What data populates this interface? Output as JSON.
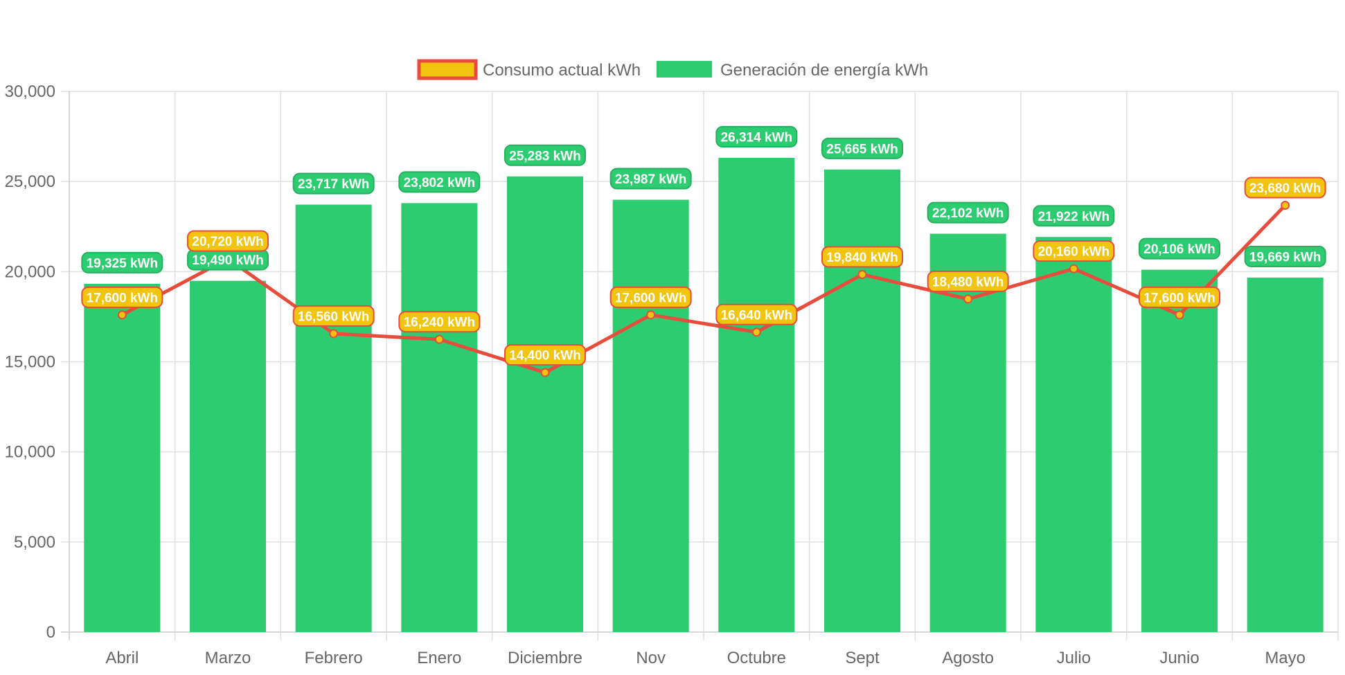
{
  "chart_data": {
    "type": "bar",
    "title": "",
    "xlabel": "",
    "ylabel": "",
    "categories": [
      "Abril",
      "Marzo",
      "Febrero",
      "Enero",
      "Diciembre",
      "Nov",
      "Octubre",
      "Sept",
      "Agosto",
      "Julio",
      "Junio",
      "Mayo"
    ],
    "ylim": [
      0,
      30000
    ],
    "y_ticks": [
      0,
      5000,
      10000,
      15000,
      20000,
      25000,
      30000
    ],
    "y_tick_labels": [
      "0",
      "5,000",
      "10,000",
      "15,000",
      "20,000",
      "25,000",
      "30,000"
    ],
    "grid": true,
    "legend_position": "top-center",
    "series": [
      {
        "name": "Consumo actual kWh",
        "type": "line",
        "color": "#e74c3c",
        "fill_color": "#f1c40f",
        "values": [
          17600,
          20720,
          16560,
          16240,
          14400,
          17600,
          16640,
          19840,
          18480,
          20160,
          17600,
          23680
        ],
        "labels": [
          "17,600 kWh",
          "20,720 kWh",
          "16,560 kWh",
          "16,240 kWh",
          "14,400 kWh",
          "17,600 kWh",
          "16,640 kWh",
          "19,840 kWh",
          "18,480 kWh",
          "20,160 kWh",
          "17,600 kWh",
          "23,680 kWh"
        ]
      },
      {
        "name": "Generación de energía kWh",
        "type": "bar",
        "color": "#2ecc71",
        "values": [
          19325,
          19490,
          23717,
          23802,
          25283,
          23987,
          26314,
          25665,
          22102,
          21922,
          20106,
          19669
        ],
        "labels": [
          "19,325 kWh",
          "19,490 kWh",
          "23,717 kWh",
          "23,802 kWh",
          "25,283 kWh",
          "23,987 kWh",
          "26,314 kWh",
          "25,665 kWh",
          "22,102 kWh",
          "21,922 kWh",
          "20,106 kWh",
          "19,669 kWh"
        ]
      }
    ]
  }
}
